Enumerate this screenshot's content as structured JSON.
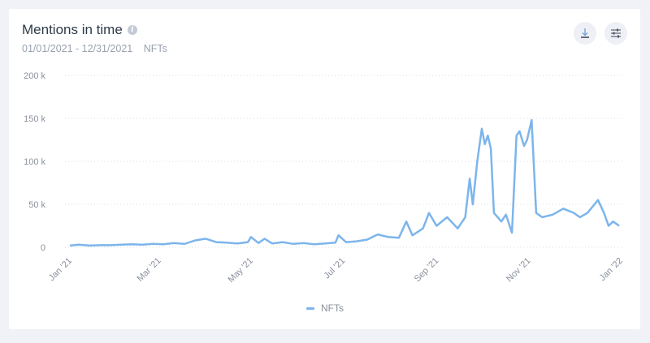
{
  "header": {
    "title": "Mentions in time",
    "date_range": "01/01/2021 - 12/31/2021",
    "keyword": "NFTs"
  },
  "toolbar": {
    "download_icon": "download-icon",
    "settings_icon": "sliders-icon"
  },
  "legend": {
    "label": "NFTs",
    "color": "#7cb5ec"
  },
  "chart_data": {
    "type": "line",
    "title": "Mentions in time",
    "subtitle": "01/01/2021 - 12/31/2021 NFTs",
    "xlabel": "",
    "ylabel": "",
    "ylim": [
      0,
      200000
    ],
    "yticks": [
      "0",
      "50 k",
      "100 k",
      "150 k",
      "200 k"
    ],
    "xticks": [
      "Jan '21",
      "Mar '21",
      "May '21",
      "Jul '21",
      "Sep '21",
      "Nov '21",
      "Jan '22"
    ],
    "grid": true,
    "legend_position": "bottom",
    "series": [
      {
        "name": "NFTs",
        "color": "#7cb5ec",
        "points": [
          [
            "2021-01-01",
            2000
          ],
          [
            "2021-01-07",
            3000
          ],
          [
            "2021-01-14",
            2000
          ],
          [
            "2021-01-21",
            2500
          ],
          [
            "2021-01-28",
            2500
          ],
          [
            "2021-02-04",
            3000
          ],
          [
            "2021-02-11",
            3500
          ],
          [
            "2021-02-18",
            3000
          ],
          [
            "2021-02-25",
            4000
          ],
          [
            "2021-03-04",
            3500
          ],
          [
            "2021-03-11",
            5000
          ],
          [
            "2021-03-18",
            4000
          ],
          [
            "2021-03-25",
            8000
          ],
          [
            "2021-04-01",
            10000
          ],
          [
            "2021-04-08",
            6000
          ],
          [
            "2021-04-15",
            5500
          ],
          [
            "2021-04-22",
            4500
          ],
          [
            "2021-04-29",
            6000
          ],
          [
            "2021-05-01",
            12000
          ],
          [
            "2021-05-06",
            5000
          ],
          [
            "2021-05-10",
            10000
          ],
          [
            "2021-05-15",
            4500
          ],
          [
            "2021-05-22",
            6000
          ],
          [
            "2021-05-29",
            4000
          ],
          [
            "2021-06-05",
            5000
          ],
          [
            "2021-06-12",
            3500
          ],
          [
            "2021-06-19",
            4500
          ],
          [
            "2021-06-26",
            5500
          ],
          [
            "2021-06-28",
            14000
          ],
          [
            "2021-07-03",
            6000
          ],
          [
            "2021-07-10",
            7000
          ],
          [
            "2021-07-17",
            9000
          ],
          [
            "2021-07-24",
            15000
          ],
          [
            "2021-07-31",
            12000
          ],
          [
            "2021-08-07",
            11000
          ],
          [
            "2021-08-12",
            30000
          ],
          [
            "2021-08-16",
            14000
          ],
          [
            "2021-08-23",
            22000
          ],
          [
            "2021-08-27",
            40000
          ],
          [
            "2021-09-01",
            25000
          ],
          [
            "2021-09-08",
            35000
          ],
          [
            "2021-09-15",
            22000
          ],
          [
            "2021-09-20",
            35000
          ],
          [
            "2021-09-23",
            80000
          ],
          [
            "2021-09-25",
            50000
          ],
          [
            "2021-09-28",
            100000
          ],
          [
            "2021-10-01",
            138000
          ],
          [
            "2021-10-03",
            120000
          ],
          [
            "2021-10-05",
            130000
          ],
          [
            "2021-10-07",
            115000
          ],
          [
            "2021-10-09",
            40000
          ],
          [
            "2021-10-14",
            30000
          ],
          [
            "2021-10-17",
            38000
          ],
          [
            "2021-10-21",
            17000
          ],
          [
            "2021-10-24",
            130000
          ],
          [
            "2021-10-26",
            135000
          ],
          [
            "2021-10-29",
            118000
          ],
          [
            "2021-10-31",
            125000
          ],
          [
            "2021-11-03",
            148000
          ],
          [
            "2021-11-06",
            40000
          ],
          [
            "2021-11-10",
            35000
          ],
          [
            "2021-11-17",
            38000
          ],
          [
            "2021-11-24",
            45000
          ],
          [
            "2021-12-01",
            40000
          ],
          [
            "2021-12-05",
            35000
          ],
          [
            "2021-12-10",
            40000
          ],
          [
            "2021-12-17",
            55000
          ],
          [
            "2021-12-21",
            40000
          ],
          [
            "2021-12-24",
            25000
          ],
          [
            "2021-12-27",
            30000
          ],
          [
            "2021-12-31",
            25000
          ]
        ]
      }
    ]
  }
}
